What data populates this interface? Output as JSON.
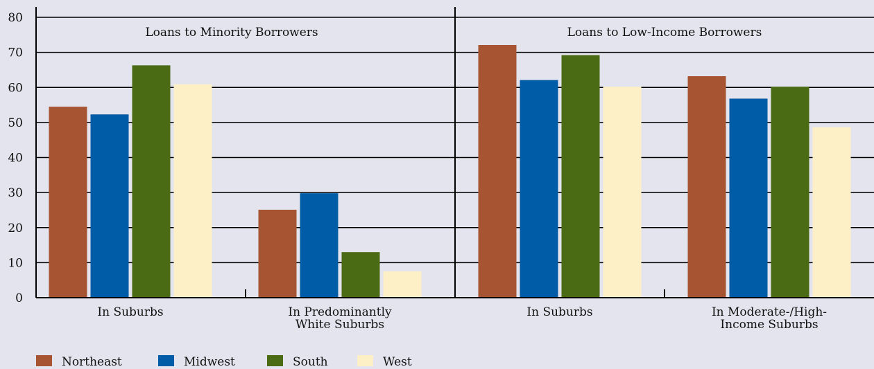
{
  "chart_data": {
    "type": "bar",
    "title": "",
    "xlabel": "",
    "ylabel": "",
    "ylim": [
      0,
      80
    ],
    "yticks": [
      0,
      10,
      20,
      30,
      40,
      50,
      60,
      70,
      80
    ],
    "grid": true,
    "legend_position": "bottom-left",
    "panels": [
      {
        "title": "Loans to Minority Borrowers",
        "groups": [
          {
            "label_lines": [
              "In Suburbs"
            ],
            "values": [
              54.5,
              52.3,
              66.3,
              60.9
            ]
          },
          {
            "label_lines": [
              "In Predominantly",
              "White Suburbs"
            ],
            "values": [
              25.1,
              29.8,
              13.0,
              7.5
            ]
          }
        ]
      },
      {
        "title": "Loans to Low-Income Borrowers",
        "groups": [
          {
            "label_lines": [
              "In Suburbs"
            ],
            "values": [
              72.1,
              62.1,
              69.2,
              60.2
            ]
          },
          {
            "label_lines": [
              "In Moderate-/High-",
              "Income Suburbs"
            ],
            "values": [
              63.2,
              56.8,
              60.2,
              48.6
            ]
          }
        ]
      }
    ],
    "series": [
      {
        "name": "Northeast",
        "color": "#a65432"
      },
      {
        "name": "Midwest",
        "color": "#005ca6"
      },
      {
        "name": "South",
        "color": "#4a6a14"
      },
      {
        "name": "West",
        "color": "#fdf0c6"
      }
    ]
  }
}
